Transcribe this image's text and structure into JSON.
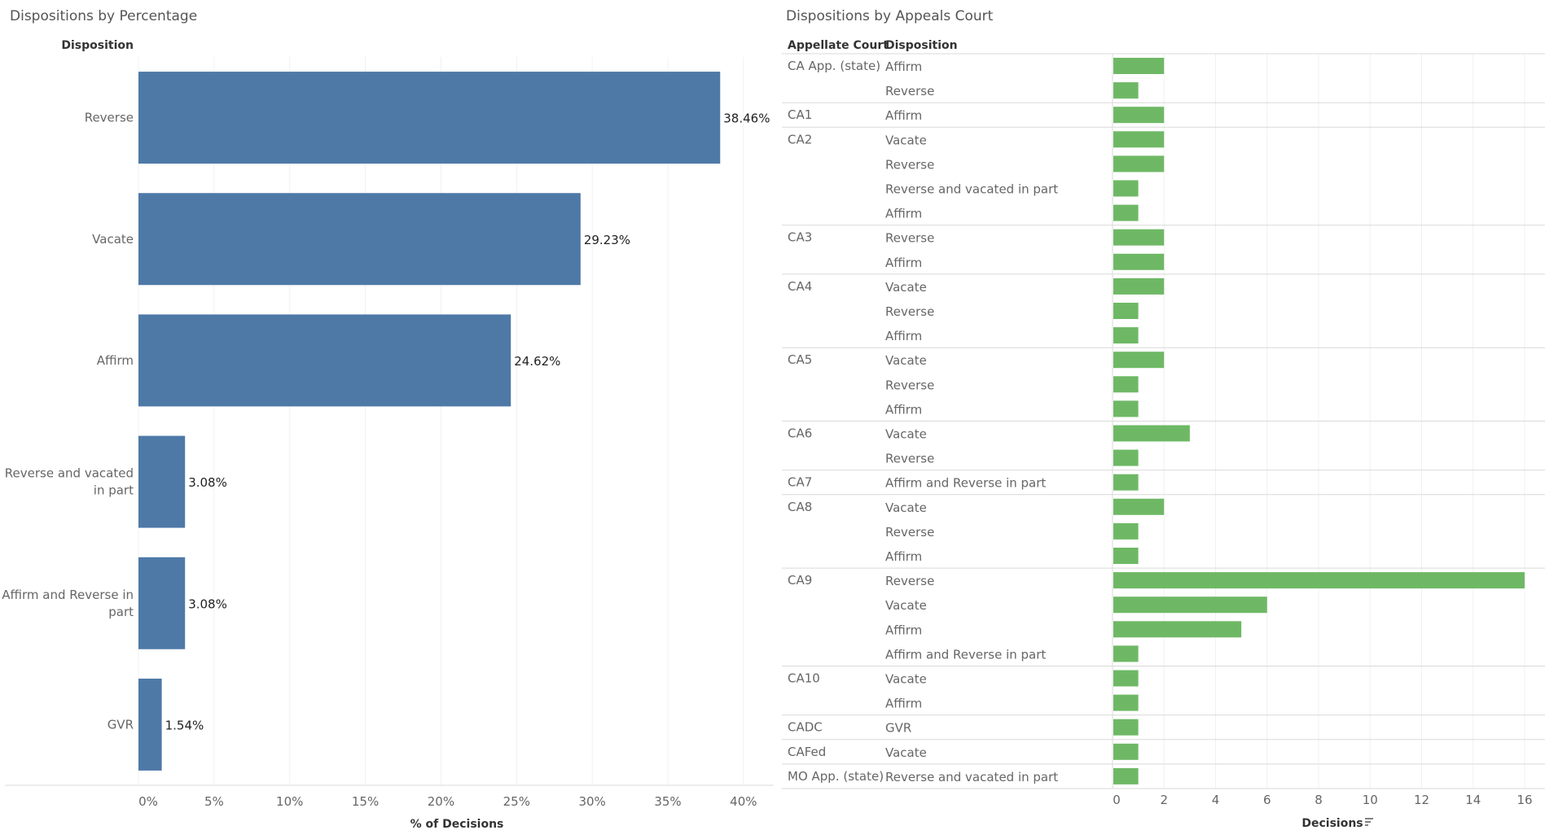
{
  "charts": {
    "left_title": "Dispositions by Percentage",
    "right_title": "Dispositions by Appeals Court"
  },
  "chart_data": [
    {
      "type": "bar",
      "orientation": "horizontal",
      "title": "Dispositions by Percentage",
      "row_header": "Disposition",
      "xlabel": "% of Decisions",
      "categories": [
        "Reverse",
        "Vacate",
        "Affirm",
        "Reverse and vacated in part",
        "Affirm and Reverse in part",
        "GVR"
      ],
      "category_lines": [
        [
          "Reverse"
        ],
        [
          "Vacate"
        ],
        [
          "Affirm"
        ],
        [
          "Reverse and vacated",
          "in part"
        ],
        [
          "Affirm and Reverse in",
          "part"
        ],
        [
          "GVR"
        ]
      ],
      "values": [
        38.46,
        29.23,
        24.62,
        3.08,
        3.08,
        1.54
      ],
      "labels": [
        "38.46%",
        "29.23%",
        "24.62%",
        "3.08%",
        "3.08%",
        "1.54%"
      ],
      "xlim": [
        0,
        42
      ],
      "xticks": [
        0,
        5,
        10,
        15,
        20,
        25,
        30,
        35,
        40
      ],
      "xtick_labels": [
        "0%",
        "5%",
        "10%",
        "15%",
        "20%",
        "25%",
        "30%",
        "35%",
        "40%"
      ],
      "color": "#4e79a7",
      "grid": true
    },
    {
      "type": "bar",
      "orientation": "horizontal",
      "title": "Dispositions by Appeals Court",
      "col_headers": [
        "Appellate Court",
        "Disposition"
      ],
      "xlabel": "Decisions",
      "xlim": [
        0,
        16.5
      ],
      "xticks": [
        0,
        2,
        4,
        6,
        8,
        10,
        12,
        14,
        16
      ],
      "color": "#6eb865",
      "grid": true,
      "groups": [
        {
          "court": "CA App. (state)",
          "rows": [
            {
              "disposition": "Affirm",
              "value": 2
            },
            {
              "disposition": "Reverse",
              "value": 1
            }
          ]
        },
        {
          "court": "CA1",
          "rows": [
            {
              "disposition": "Affirm",
              "value": 2
            }
          ]
        },
        {
          "court": "CA2",
          "rows": [
            {
              "disposition": "Vacate",
              "value": 2
            },
            {
              "disposition": "Reverse",
              "value": 2
            },
            {
              "disposition": "Reverse and vacated in part",
              "value": 1
            },
            {
              "disposition": "Affirm",
              "value": 1
            }
          ]
        },
        {
          "court": "CA3",
          "rows": [
            {
              "disposition": "Reverse",
              "value": 2
            },
            {
              "disposition": "Affirm",
              "value": 2
            }
          ]
        },
        {
          "court": "CA4",
          "rows": [
            {
              "disposition": "Vacate",
              "value": 2
            },
            {
              "disposition": "Reverse",
              "value": 1
            },
            {
              "disposition": "Affirm",
              "value": 1
            }
          ]
        },
        {
          "court": "CA5",
          "rows": [
            {
              "disposition": "Vacate",
              "value": 2
            },
            {
              "disposition": "Reverse",
              "value": 1
            },
            {
              "disposition": "Affirm",
              "value": 1
            }
          ]
        },
        {
          "court": "CA6",
          "rows": [
            {
              "disposition": "Vacate",
              "value": 3
            },
            {
              "disposition": "Reverse",
              "value": 1
            }
          ]
        },
        {
          "court": "CA7",
          "rows": [
            {
              "disposition": "Affirm and Reverse in part",
              "value": 1
            }
          ]
        },
        {
          "court": "CA8",
          "rows": [
            {
              "disposition": "Vacate",
              "value": 2
            },
            {
              "disposition": "Reverse",
              "value": 1
            },
            {
              "disposition": "Affirm",
              "value": 1
            }
          ]
        },
        {
          "court": "CA9",
          "rows": [
            {
              "disposition": "Reverse",
              "value": 16
            },
            {
              "disposition": "Vacate",
              "value": 6
            },
            {
              "disposition": "Affirm",
              "value": 5
            },
            {
              "disposition": "Affirm and Reverse in part",
              "value": 1
            }
          ]
        },
        {
          "court": "CA10",
          "rows": [
            {
              "disposition": "Vacate",
              "value": 1
            },
            {
              "disposition": "Affirm",
              "value": 1
            }
          ]
        },
        {
          "court": "CADC",
          "rows": [
            {
              "disposition": "GVR",
              "value": 1
            }
          ]
        },
        {
          "court": "CAFed",
          "rows": [
            {
              "disposition": "Vacate",
              "value": 1
            }
          ]
        },
        {
          "court": "MO App. (state)",
          "rows": [
            {
              "disposition": "Reverse and vacated in part",
              "value": 1
            }
          ]
        }
      ]
    }
  ]
}
